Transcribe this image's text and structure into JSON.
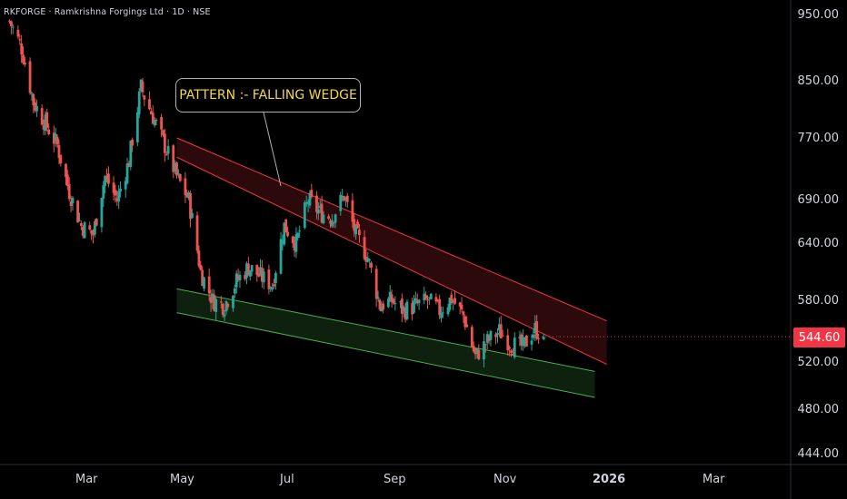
{
  "header": {
    "ticker_label": "RKFORGE · Ramkrishna Forgings Ltd · 1D · NSE"
  },
  "callout": {
    "text": "PATTERN :- FALLING WEDGE"
  },
  "last_price": {
    "value": "544.60",
    "color": "#f23645"
  },
  "colors": {
    "up": "#26a69a",
    "down": "#ef5350",
    "upper_band": "#f23645",
    "lower_band": "#4caf50",
    "annotation_text": "#f5d842"
  },
  "chart_data": {
    "type": "candlestick",
    "symbol": "RKFORGE",
    "interval": "1D",
    "exchange": "NSE",
    "price_axis_ticks": [
      "950.00",
      "850.00",
      "770.00",
      "690.00",
      "640.00",
      "580.00",
      "520.00",
      "480.00",
      "444.00"
    ],
    "time_axis_ticks": [
      "Mar",
      "May",
      "Jul",
      "Sep",
      "Nov",
      "2026",
      "Mar"
    ],
    "close_path": [
      [
        "2025-01-15",
        940
      ],
      [
        "2025-01-22",
        900
      ],
      [
        "2025-01-29",
        820
      ],
      [
        "2025-02-05",
        790
      ],
      [
        "2025-02-12",
        760
      ],
      [
        "2025-02-19",
        700
      ],
      [
        "2025-02-26",
        660
      ],
      [
        "2025-03-05",
        650
      ],
      [
        "2025-03-12",
        720
      ],
      [
        "2025-03-19",
        690
      ],
      [
        "2025-03-26",
        740
      ],
      [
        "2025-04-02",
        840
      ],
      [
        "2025-04-09",
        800
      ],
      [
        "2025-04-16",
        760
      ],
      [
        "2025-04-23",
        720
      ],
      [
        "2025-04-30",
        690
      ],
      [
        "2025-05-07",
        610
      ],
      [
        "2025-05-14",
        580
      ],
      [
        "2025-05-21",
        575
      ],
      [
        "2025-05-28",
        600
      ],
      [
        "2025-06-04",
        615
      ],
      [
        "2025-06-11",
        605
      ],
      [
        "2025-06-18",
        596
      ],
      [
        "2025-06-25",
        660
      ],
      [
        "2025-07-02",
        640
      ],
      [
        "2025-07-09",
        690
      ],
      [
        "2025-07-16",
        675
      ],
      [
        "2025-07-23",
        670
      ],
      [
        "2025-07-30",
        695
      ],
      [
        "2025-08-06",
        650
      ],
      [
        "2025-08-13",
        625
      ],
      [
        "2025-08-20",
        575
      ],
      [
        "2025-08-27",
        580
      ],
      [
        "2025-09-03",
        570
      ],
      [
        "2025-09-10",
        575
      ],
      [
        "2025-09-17",
        580
      ],
      [
        "2025-09-24",
        570
      ],
      [
        "2025-10-01",
        582
      ],
      [
        "2025-10-08",
        565
      ],
      [
        "2025-10-15",
        525
      ],
      [
        "2025-10-22",
        540
      ],
      [
        "2025-10-29",
        550
      ],
      [
        "2025-11-05",
        537
      ],
      [
        "2025-11-12",
        535
      ],
      [
        "2025-11-19",
        552
      ],
      [
        "2025-11-24",
        544.6
      ]
    ],
    "last_price": 544.6,
    "annotations": [
      {
        "type": "falling_wedge_upper_band",
        "color": "#f23645",
        "start": {
          "date": "2025-04-23",
          "top": 770,
          "bottom": 745
        },
        "end": {
          "date": "2025-12-31",
          "top": 560,
          "bottom": 518
        }
      },
      {
        "type": "falling_wedge_lower_band",
        "color": "#4caf50",
        "start": {
          "date": "2025-04-23",
          "top": 592,
          "bottom": 568
        },
        "end": {
          "date": "2025-12-24",
          "top": 512,
          "bottom": 490
        }
      },
      {
        "type": "callout",
        "text": "PATTERN :- FALLING WEDGE",
        "points_to": {
          "date": "2025-07-02",
          "price": 702
        }
      }
    ]
  }
}
